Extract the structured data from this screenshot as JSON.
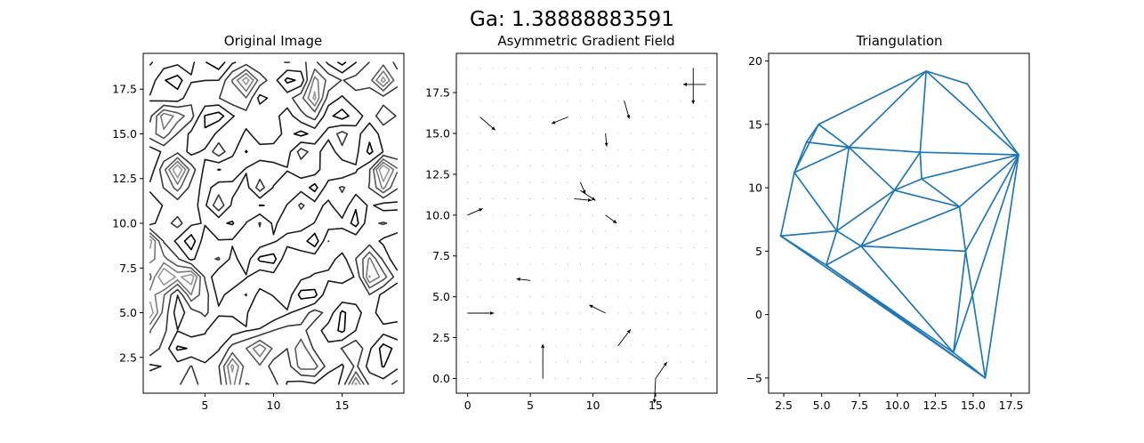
{
  "figure": {
    "suptitle": "Ga: 1.38888883591"
  },
  "chart_data": [
    {
      "type": "contour",
      "title": "Original Image",
      "xlim": [
        0.5,
        19.5
      ],
      "ylim": [
        0.5,
        19.5
      ],
      "x_ticks": [
        5,
        10,
        15
      ],
      "x_tick_labels": [
        "5",
        "10",
        "15"
      ],
      "y_ticks": [
        2.5,
        5.0,
        7.5,
        10.0,
        12.5,
        15.0,
        17.5
      ],
      "y_tick_labels": [
        "2.5",
        "5.0",
        "7.5",
        "10.0",
        "12.5",
        "15.0",
        "17.5"
      ],
      "colormap": "grayscale",
      "hotspots": [
        {
          "x": 2,
          "y": 15.5
        },
        {
          "x": 3,
          "y": 12.5
        },
        {
          "x": 1,
          "y": 8.5
        },
        {
          "x": 2,
          "y": 7
        },
        {
          "x": 4,
          "y": 6.5
        },
        {
          "x": 7,
          "y": 1.5
        },
        {
          "x": 8,
          "y": 17.5
        },
        {
          "x": 13,
          "y": 17.5
        },
        {
          "x": 18,
          "y": 18
        },
        {
          "x": 18,
          "y": 12.5
        },
        {
          "x": 17,
          "y": 7.5
        },
        {
          "x": 12,
          "y": 3
        },
        {
          "x": 16,
          "y": 1
        },
        {
          "x": 1,
          "y": 5
        },
        {
          "x": 9,
          "y": 2.5
        }
      ]
    },
    {
      "type": "quiver",
      "title": "Asymmetric Gradient Field",
      "xlim": [
        -0.9,
        19.9
      ],
      "ylim": [
        -0.9,
        19.9
      ],
      "x_ticks": [
        0,
        5,
        10,
        15
      ],
      "x_tick_labels": [
        "0",
        "5",
        "10",
        "15"
      ],
      "y_ticks": [
        0.0,
        2.5,
        5.0,
        7.5,
        10.0,
        12.5,
        15.0,
        17.5
      ],
      "y_tick_labels": [
        "0.0",
        "2.5",
        "5.0",
        "7.5",
        "10.0",
        "12.5",
        "15.0",
        "17.5"
      ],
      "grid_points": {
        "min": 0,
        "max": 19,
        "step": 1
      },
      "vectors": [
        {
          "x": 18,
          "y": 19,
          "u": 0,
          "v": -2.2
        },
        {
          "x": 19,
          "y": 18,
          "u": -1.8,
          "v": 0
        },
        {
          "x": 1,
          "y": 16,
          "u": 1.2,
          "v": -0.8
        },
        {
          "x": 8,
          "y": 16,
          "u": -1.3,
          "v": -0.4
        },
        {
          "x": 12.5,
          "y": 17,
          "u": 0.4,
          "v": -1.1
        },
        {
          "x": 11,
          "y": 15,
          "u": 0.1,
          "v": -0.8
        },
        {
          "x": 9,
          "y": 12,
          "u": 0.4,
          "v": -0.7
        },
        {
          "x": 9,
          "y": 11.5,
          "u": 1.2,
          "v": -0.6
        },
        {
          "x": 8.5,
          "y": 11,
          "u": 1.4,
          "v": -0.1
        },
        {
          "x": 11,
          "y": 10,
          "u": 0.9,
          "v": -0.5
        },
        {
          "x": 0,
          "y": 10,
          "u": 1.2,
          "v": 0.4
        },
        {
          "x": 5,
          "y": 6,
          "u": -1.1,
          "v": 0.1
        },
        {
          "x": 0,
          "y": 4,
          "u": 2.1,
          "v": 0
        },
        {
          "x": 11,
          "y": 4,
          "u": -1.3,
          "v": 0.5
        },
        {
          "x": 12,
          "y": 2,
          "u": 1.0,
          "v": 1.0
        },
        {
          "x": 6,
          "y": 0,
          "u": 0,
          "v": 2.1
        },
        {
          "x": 15,
          "y": 0,
          "u": 0.9,
          "v": 1.0
        },
        {
          "x": 15,
          "y": 0,
          "u": -0.1,
          "v": -1.5
        }
      ]
    },
    {
      "type": "triangulation",
      "title": "Triangulation",
      "xlim": [
        1.5,
        18.7
      ],
      "ylim": [
        -6.2,
        20.6
      ],
      "x_ticks": [
        2.5,
        5.0,
        7.5,
        10.0,
        12.5,
        15.0,
        17.5
      ],
      "x_tick_labels": [
        "2.5",
        "5.0",
        "7.5",
        "10.0",
        "12.5",
        "15.0",
        "17.5"
      ],
      "y_ticks": [
        -5,
        0,
        5,
        10,
        15,
        20
      ],
      "y_tick_labels": [
        "−5",
        "0",
        "5",
        "10",
        "15",
        "20"
      ],
      "line_color": "#1f77b4",
      "points": [
        [
          11.9,
          19.2
        ],
        [
          14.6,
          18.2
        ],
        [
          18.0,
          12.6
        ],
        [
          11.5,
          12.8
        ],
        [
          11.6,
          10.7
        ],
        [
          9.8,
          9.8
        ],
        [
          14.1,
          8.5
        ],
        [
          6.8,
          13.2
        ],
        [
          4.0,
          13.6
        ],
        [
          4.8,
          15.0
        ],
        [
          3.2,
          11.2
        ],
        [
          2.3,
          6.2
        ],
        [
          6.0,
          6.6
        ],
        [
          7.6,
          5.4
        ],
        [
          14.5,
          5.0
        ],
        [
          5.3,
          3.9
        ],
        [
          13.7,
          -3.0
        ],
        [
          15.8,
          -5.0
        ]
      ],
      "edges": [
        [
          0,
          1
        ],
        [
          0,
          9
        ],
        [
          0,
          7
        ],
        [
          0,
          3
        ],
        [
          1,
          2
        ],
        [
          0,
          2
        ],
        [
          3,
          2
        ],
        [
          4,
          2
        ],
        [
          6,
          2
        ],
        [
          14,
          2
        ],
        [
          16,
          2
        ],
        [
          17,
          2
        ],
        [
          3,
          4
        ],
        [
          3,
          7
        ],
        [
          3,
          5
        ],
        [
          4,
          5
        ],
        [
          4,
          6
        ],
        [
          5,
          7
        ],
        [
          5,
          12
        ],
        [
          5,
          13
        ],
        [
          5,
          6
        ],
        [
          6,
          13
        ],
        [
          6,
          14
        ],
        [
          13,
          14
        ],
        [
          13,
          16
        ],
        [
          14,
          17
        ],
        [
          14,
          16
        ],
        [
          7,
          12
        ],
        [
          7,
          8
        ],
        [
          7,
          9
        ],
        [
          7,
          10
        ],
        [
          8,
          9
        ],
        [
          8,
          10
        ],
        [
          9,
          10
        ],
        [
          10,
          11
        ],
        [
          10,
          12
        ],
        [
          11,
          12
        ],
        [
          12,
          13
        ],
        [
          12,
          15
        ],
        [
          13,
          15
        ],
        [
          15,
          16
        ],
        [
          15,
          17
        ],
        [
          11,
          15
        ],
        [
          11,
          17
        ],
        [
          16,
          17
        ]
      ]
    }
  ]
}
